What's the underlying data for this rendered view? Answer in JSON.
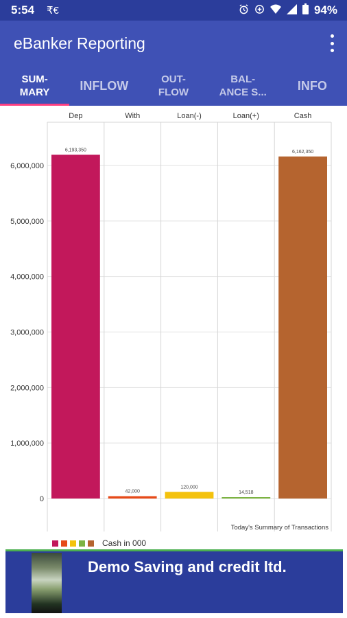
{
  "status_bar": {
    "time": "5:54",
    "rupee_icon": "₹€",
    "battery_percent": "94%",
    "icons": [
      "alarm-icon",
      "data-saver-icon",
      "wifi-icon",
      "signal-icon",
      "battery-icon"
    ]
  },
  "app_bar": {
    "title": "eBanker Reporting",
    "menu_icon": "more-vert-icon"
  },
  "tabs": [
    {
      "label": "SUM-\nMARY",
      "active": true
    },
    {
      "label": "INFLOW",
      "active": false
    },
    {
      "label": "OUT-\nFLOW",
      "active": false
    },
    {
      "label": "BAL-\nANCE S...",
      "active": false
    },
    {
      "label": "INFO",
      "active": false
    }
  ],
  "chart_data": {
    "type": "bar",
    "categories": [
      "Dep",
      "With",
      "Loan(-)",
      "Loan(+)",
      "Cash"
    ],
    "values": [
      6193350,
      42000,
      120000,
      14518,
      6162350
    ],
    "data_labels": [
      "6,193,350",
      "42,000",
      "120,000",
      "14,518",
      "6,162,350"
    ],
    "colors": [
      "#c2185b",
      "#e64a19",
      "#f4c20d",
      "#7cb342",
      "#b5642f"
    ],
    "y_ticks": [
      "0",
      "1,000,000",
      "2,000,000",
      "3,000,000",
      "4,000,000",
      "5,000,000",
      "6,000,000"
    ],
    "y_tick_values": [
      0,
      1000000,
      2000000,
      3000000,
      4000000,
      5000000,
      6000000
    ],
    "ylim": [
      0,
      6200000
    ],
    "caption": "Today's Summary of Transactions",
    "grid": true
  },
  "legend": {
    "label": "Cash in 000",
    "swatches": [
      "#c2185b",
      "#e64a19",
      "#f4c20d",
      "#7cb342",
      "#b5642f"
    ]
  },
  "banner": {
    "bank_name": "Demo Saving and credit ltd."
  }
}
